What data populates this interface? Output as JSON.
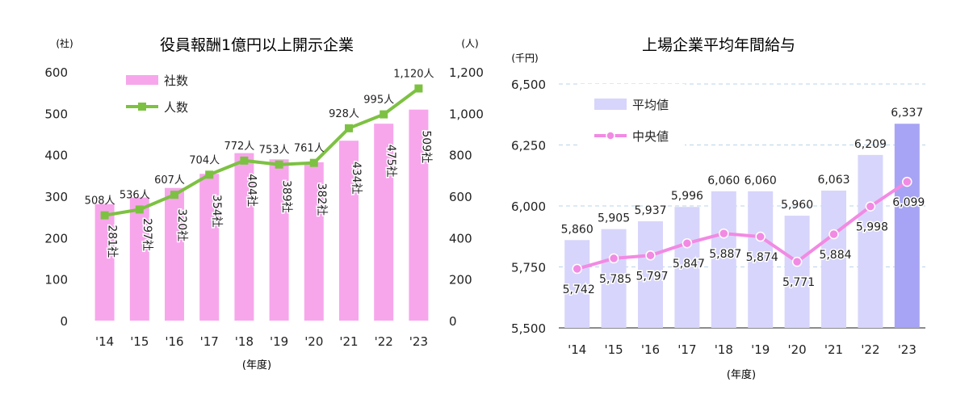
{
  "chart_data": [
    {
      "type": "bar+line",
      "title": "役員報酬1億円以上開示企業",
      "xlabel": "(年度)",
      "ylabel_left": "(社)",
      "ylabel_right": "(人)",
      "categories": [
        "'14",
        "'15",
        "'16",
        "'17",
        "'18",
        "'19",
        "'20",
        "'21",
        "'22",
        "'23"
      ],
      "ylim_left": [
        0,
        600
      ],
      "yticks_left": [
        "0",
        "100",
        "200",
        "300",
        "400",
        "500",
        "600"
      ],
      "ylim_right": [
        0,
        1200
      ],
      "yticks_right": [
        "0",
        "200",
        "400",
        "600",
        "800",
        "1,000",
        "1,200"
      ],
      "grid": false,
      "legend": "top-left",
      "series": [
        {
          "name": "社数",
          "kind": "bar",
          "axis": "left",
          "color": "#f7a6ec",
          "values": [
            281,
            297,
            320,
            354,
            404,
            389,
            382,
            434,
            475,
            509
          ],
          "labels": [
            "281社",
            "297社",
            "320社",
            "354社",
            "404社",
            "389社",
            "382社",
            "434社",
            "475社",
            "509社"
          ]
        },
        {
          "name": "人数",
          "kind": "line",
          "axis": "right",
          "color": "#7dc142",
          "values": [
            508,
            536,
            607,
            704,
            772,
            753,
            761,
            928,
            995,
            1120
          ],
          "labels": [
            "508人",
            "536人",
            "607人",
            "704人",
            "772人",
            "753人",
            "761人",
            "928人",
            "995人",
            "1,120人"
          ]
        }
      ]
    },
    {
      "type": "bar+line",
      "title": "上場企業平均年間給与",
      "xlabel": "(年度)",
      "ylabel": "(千円)",
      "categories": [
        "'14",
        "'15",
        "'16",
        "'17",
        "'18",
        "'19",
        "'20",
        "'21",
        "'22",
        "'23"
      ],
      "ylim": [
        5500,
        6500
      ],
      "yticks": [
        "5,500",
        "5,750",
        "6,000",
        "6,250",
        "6,500"
      ],
      "grid": true,
      "legend": "top-left",
      "series": [
        {
          "name": "平均値",
          "kind": "bar",
          "color": "#d7d5fb",
          "highlight_color": "#a7a4f5",
          "values": [
            5860,
            5905,
            5937,
            5996,
            6060,
            6060,
            5960,
            6063,
            6209,
            6337
          ],
          "labels": [
            "5,860",
            "5,905",
            "5,937",
            "5,996",
            "6,060",
            "6,060",
            "5,960",
            "6,063",
            "6,209",
            "6,337"
          ]
        },
        {
          "name": "中央値",
          "kind": "line",
          "color": "#f28ae3",
          "values": [
            5742,
            5785,
            5797,
            5847,
            5887,
            5874,
            5771,
            5884,
            5998,
            6099
          ],
          "labels": [
            "5,742",
            "5,785",
            "5,797",
            "5,847",
            "5,887",
            "5,874",
            "5,771",
            "5,884",
            "5,998",
            "6,099"
          ]
        }
      ]
    }
  ]
}
